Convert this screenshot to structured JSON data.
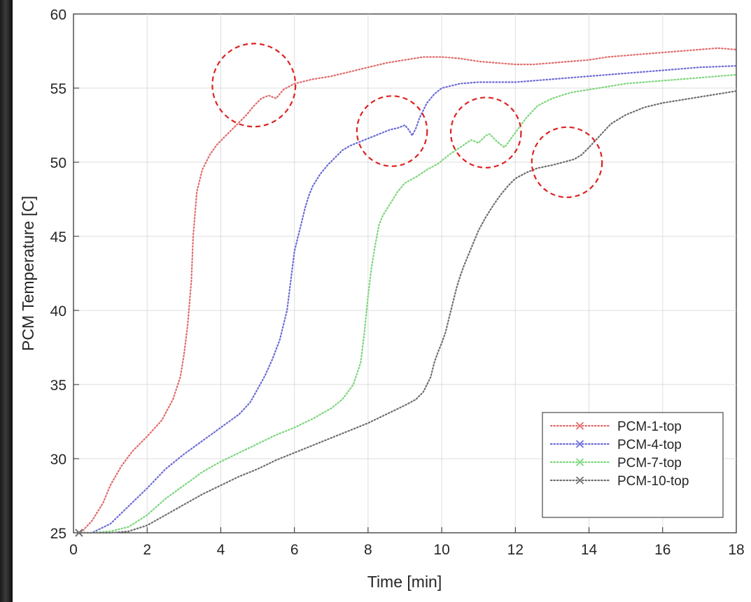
{
  "chart_data": {
    "type": "line",
    "title": "",
    "xlabel": "Time [min]",
    "ylabel": "PCM Temperature [C]",
    "xlim": [
      0,
      18
    ],
    "ylim": [
      25,
      60
    ],
    "xticks": [
      0,
      2,
      4,
      6,
      8,
      10,
      12,
      14,
      16,
      18
    ],
    "yticks": [
      25,
      30,
      35,
      40,
      45,
      50,
      55,
      60
    ],
    "grid": true,
    "legend_position": "bottom-right",
    "series": [
      {
        "name": "PCM-1-top",
        "color": "#e06b6b",
        "x": [
          0.2,
          0.5,
          0.8,
          1.0,
          1.3,
          1.6,
          2.0,
          2.4,
          2.7,
          2.9,
          3.0,
          3.1,
          3.2,
          3.25,
          3.35,
          3.5,
          3.7,
          3.9,
          4.1,
          4.3,
          4.5,
          4.7,
          4.9,
          5.1,
          5.3,
          5.5,
          5.7,
          6.0,
          6.5,
          7.0,
          7.5,
          8.0,
          8.5,
          9.0,
          9.5,
          10.0,
          10.5,
          11.0,
          11.5,
          12.0,
          12.5,
          13.0,
          13.5,
          14.0,
          14.5,
          15.0,
          15.5,
          16.0,
          16.5,
          17.0,
          17.5,
          18.0
        ],
        "y": [
          25,
          25.8,
          27,
          28.2,
          29.5,
          30.5,
          31.5,
          32.6,
          34.0,
          35.5,
          37.0,
          39.0,
          42.0,
          45.0,
          48.0,
          49.5,
          50.5,
          51.2,
          51.7,
          52.2,
          52.7,
          53.2,
          53.8,
          54.3,
          54.5,
          54.3,
          54.9,
          55.3,
          55.6,
          55.8,
          56.1,
          56.4,
          56.7,
          56.9,
          57.1,
          57.1,
          57.0,
          56.8,
          56.7,
          56.6,
          56.6,
          56.7,
          56.8,
          56.9,
          57.1,
          57.2,
          57.3,
          57.4,
          57.5,
          57.6,
          57.7,
          57.6
        ]
      },
      {
        "name": "PCM-4-top",
        "color": "#6b6bd6",
        "x": [
          0.2,
          0.5,
          1.0,
          1.5,
          2.0,
          2.5,
          3.0,
          3.5,
          4.0,
          4.5,
          4.8,
          5.0,
          5.2,
          5.4,
          5.6,
          5.8,
          5.9,
          6.0,
          6.1,
          6.2,
          6.3,
          6.4,
          6.5,
          6.7,
          6.9,
          7.1,
          7.3,
          7.5,
          7.7,
          8.0,
          8.3,
          8.6,
          8.8,
          9.0,
          9.1,
          9.2,
          9.3,
          9.4,
          9.6,
          9.8,
          10.0,
          10.5,
          11.0,
          11.5,
          12.0,
          12.5,
          13.0,
          14.0,
          15.0,
          16.0,
          17.0,
          18.0
        ],
        "y": [
          25,
          25,
          25.6,
          26.8,
          28.0,
          29.3,
          30.3,
          31.2,
          32.1,
          33.0,
          33.8,
          34.7,
          35.6,
          36.7,
          38.0,
          40.0,
          42.0,
          44.0,
          45.0,
          46.0,
          47.0,
          47.8,
          48.4,
          49.2,
          49.8,
          50.3,
          50.8,
          51.1,
          51.3,
          51.6,
          51.9,
          52.2,
          52.3,
          52.5,
          52.2,
          51.8,
          52.3,
          53.0,
          54.0,
          54.6,
          55.0,
          55.3,
          55.4,
          55.4,
          55.4,
          55.5,
          55.6,
          55.8,
          56.0,
          56.2,
          56.4,
          56.5
        ]
      },
      {
        "name": "PCM-7-top",
        "color": "#7ad67a",
        "x": [
          0.2,
          0.5,
          1.0,
          1.5,
          2.0,
          2.5,
          3.0,
          3.5,
          4.0,
          4.5,
          5.0,
          5.5,
          6.0,
          6.5,
          7.0,
          7.3,
          7.6,
          7.8,
          7.9,
          8.0,
          8.1,
          8.2,
          8.3,
          8.4,
          8.6,
          8.8,
          9.0,
          9.3,
          9.6,
          9.9,
          10.2,
          10.5,
          10.8,
          11.0,
          11.2,
          11.3,
          11.5,
          11.7,
          11.8,
          12.0,
          12.3,
          12.6,
          13.0,
          13.5,
          14.0,
          14.5,
          15.0,
          15.5,
          16.0,
          16.5,
          17.0,
          17.5,
          18.0
        ],
        "y": [
          25,
          25,
          25.1,
          25.4,
          26.2,
          27.3,
          28.2,
          29.1,
          29.8,
          30.4,
          31.0,
          31.6,
          32.1,
          32.7,
          33.4,
          34.0,
          35.0,
          36.5,
          38.5,
          41.0,
          43.0,
          44.5,
          45.8,
          46.4,
          47.2,
          48.0,
          48.6,
          49.0,
          49.5,
          49.9,
          50.5,
          51.0,
          51.5,
          51.3,
          51.8,
          51.9,
          51.4,
          51.0,
          51.3,
          52.0,
          53.0,
          53.8,
          54.3,
          54.7,
          54.9,
          55.1,
          55.3,
          55.4,
          55.5,
          55.6,
          55.7,
          55.8,
          55.9
        ]
      },
      {
        "name": "PCM-10-top",
        "color": "#6e6e6e",
        "x": [
          0.2,
          0.5,
          1.0,
          1.5,
          2.0,
          2.5,
          3.0,
          3.5,
          4.0,
          4.5,
          5.0,
          5.5,
          6.0,
          6.5,
          7.0,
          7.5,
          8.0,
          8.5,
          9.0,
          9.3,
          9.5,
          9.7,
          9.8,
          9.9,
          10.0,
          10.1,
          10.2,
          10.3,
          10.4,
          10.5,
          10.6,
          10.8,
          11.0,
          11.2,
          11.4,
          11.6,
          11.8,
          12.0,
          12.3,
          12.6,
          13.0,
          13.3,
          13.6,
          13.8,
          14.0,
          14.3,
          14.6,
          15.0,
          15.5,
          16.0,
          16.5,
          17.0,
          17.5,
          18.0
        ],
        "y": [
          25,
          25,
          25,
          25.1,
          25.5,
          26.2,
          26.9,
          27.6,
          28.2,
          28.8,
          29.3,
          29.9,
          30.4,
          30.9,
          31.4,
          31.9,
          32.4,
          33.0,
          33.6,
          34.0,
          34.5,
          35.5,
          36.5,
          37.2,
          37.8,
          38.5,
          39.5,
          40.5,
          41.5,
          42.3,
          43.0,
          44.2,
          45.4,
          46.3,
          47.1,
          47.8,
          48.4,
          48.9,
          49.3,
          49.6,
          49.8,
          50.0,
          50.2,
          50.5,
          51.0,
          51.8,
          52.6,
          53.2,
          53.7,
          54.0,
          54.2,
          54.4,
          54.6,
          54.8
        ]
      }
    ],
    "annotations": [
      {
        "shape": "dashed-circle",
        "color": "#dd2222",
        "cx": 4.9,
        "cy": 55.2,
        "rx": 1.05,
        "ry": 3.0
      },
      {
        "shape": "dashed-circle",
        "color": "#dd2222",
        "cx": 8.65,
        "cy": 52.1,
        "rx": 0.86,
        "ry": 2.6
      },
      {
        "shape": "dashed-circle",
        "color": "#dd2222",
        "cx": 11.2,
        "cy": 52.0,
        "rx": 0.86,
        "ry": 2.6
      },
      {
        "shape": "dashed-circle",
        "color": "#dd2222",
        "cx": 13.4,
        "cy": 50.0,
        "rx": 0.86,
        "ry": 2.6
      }
    ],
    "marker": "x",
    "marker_point": {
      "x": 0.15,
      "y": 25
    }
  }
}
